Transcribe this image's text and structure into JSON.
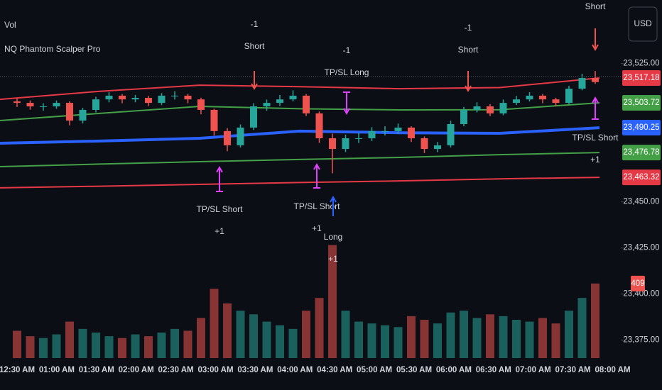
{
  "chart_data": {
    "type": "candlestick",
    "title": "NQ Phantom Scalper Pro",
    "volume_label": "Vol",
    "currency": "USD",
    "ylim": [
      23359.5,
      23559.5
    ],
    "yticks": [
      {
        "value": 23375,
        "label": "23,375.00"
      },
      {
        "value": 23400,
        "label": "23,400.00"
      },
      {
        "value": 23425,
        "label": "23,425.00"
      },
      {
        "value": 23450,
        "label": "23,450.00"
      },
      {
        "value": 23525,
        "label": "23,525.00"
      }
    ],
    "xticks": [
      "12:30 AM",
      "01:00 AM",
      "01:30 AM",
      "02:00 AM",
      "02:30 AM",
      "03:00 AM",
      "03:30 AM",
      "04:00 AM",
      "04:30 AM",
      "05:00 AM",
      "05:30 AM",
      "06:00 AM",
      "06:30 AM",
      "07:00 AM",
      "07:30 AM",
      "08:00 AM"
    ],
    "up_color": "#26a69a",
    "down_color": "#ef5350",
    "candles": [
      [
        23504.5,
        23506.0,
        23501.5,
        23503.7
      ],
      [
        23503.7,
        23505.0,
        23500.0,
        23501.8
      ],
      [
        23501.8,
        23503.5,
        23499.5,
        23501.8
      ],
      [
        23501.8,
        23505.0,
        23500.5,
        23503.7
      ],
      [
        23503.7,
        23504.5,
        23491.5,
        23494.1
      ],
      [
        23494.1,
        23501.0,
        23492.5,
        23499.9
      ],
      [
        23499.9,
        23507.0,
        23498.5,
        23505.6
      ],
      [
        23505.6,
        23509.5,
        23504.0,
        23507.6
      ],
      [
        23507.6,
        23508.5,
        23503.5,
        23505.6
      ],
      [
        23505.6,
        23508.0,
        23504.0,
        23506.4
      ],
      [
        23506.4,
        23507.5,
        23502.0,
        23503.7
      ],
      [
        23503.7,
        23509.0,
        23502.5,
        23507.6
      ],
      [
        23507.6,
        23510.0,
        23505.5,
        23507.6
      ],
      [
        23507.6,
        23508.5,
        23503.5,
        23505.6
      ],
      [
        23505.6,
        23506.5,
        23497.5,
        23499.9
      ],
      [
        23499.9,
        23500.5,
        23486.0,
        23488.4
      ],
      [
        23488.4,
        23490.0,
        23477.5,
        23480.7
      ],
      [
        23480.7,
        23492.0,
        23479.5,
        23490.3
      ],
      [
        23490.3,
        23503.5,
        23489.0,
        23501.8
      ],
      [
        23501.8,
        23505.5,
        23499.5,
        23503.7
      ],
      [
        23503.7,
        23508.0,
        23502.0,
        23505.6
      ],
      [
        23505.6,
        23510.5,
        23504.5,
        23507.6
      ],
      [
        23507.6,
        23508.5,
        23496.5,
        23498.0
      ],
      [
        23498.0,
        23499.0,
        23482.0,
        23484.5
      ],
      [
        23484.5,
        23487.0,
        23465.5,
        23478.7
      ],
      [
        23478.7,
        23486.5,
        23477.0,
        23484.5
      ],
      [
        23484.5,
        23487.5,
        23482.0,
        23484.5
      ],
      [
        23484.5,
        23490.5,
        23483.0,
        23488.4
      ],
      [
        23488.4,
        23491.0,
        23486.0,
        23488.4
      ],
      [
        23488.4,
        23492.5,
        23487.0,
        23490.3
      ],
      [
        23490.3,
        23491.0,
        23482.5,
        23484.5
      ],
      [
        23484.5,
        23485.5,
        23476.5,
        23478.7
      ],
      [
        23478.7,
        23482.5,
        23477.0,
        23480.7
      ],
      [
        23480.7,
        23494.0,
        23479.5,
        23492.2
      ],
      [
        23492.2,
        23501.5,
        23491.0,
        23499.9
      ],
      [
        23499.9,
        23504.0,
        23498.5,
        23501.8
      ],
      [
        23501.8,
        23503.0,
        23496.5,
        23498.0
      ],
      [
        23498.0,
        23505.5,
        23497.0,
        23503.7
      ],
      [
        23503.7,
        23507.5,
        23502.5,
        23505.6
      ],
      [
        23505.6,
        23509.5,
        23504.5,
        23507.6
      ],
      [
        23507.6,
        23508.5,
        23503.5,
        23505.6
      ],
      [
        23505.6,
        23506.5,
        23502.0,
        23503.7
      ],
      [
        23503.7,
        23513.0,
        23503.0,
        23511.4
      ],
      [
        23511.4,
        23519.5,
        23510.5,
        23517.2
      ],
      [
        23517.2,
        23521.0,
        23514.0,
        23515.0
      ]
    ],
    "volume": {
      "ylim": [
        0,
        700
      ],
      "values": [
        150,
        120,
        110,
        130,
        200,
        160,
        140,
        120,
        110,
        130,
        120,
        140,
        160,
        150,
        220,
        380,
        300,
        260,
        240,
        200,
        180,
        160,
        260,
        330,
        620,
        260,
        200,
        190,
        180,
        170,
        230,
        210,
        190,
        250,
        260,
        220,
        240,
        230,
        210,
        200,
        220,
        190,
        260,
        330,
        409
      ],
      "last_label": "409"
    },
    "series": [
      {
        "color": "#e53945",
        "values": [
          23505.6,
          23510.0,
          23513.3,
          23512.5,
          23511.4,
          23512.0,
          23517.18
        ],
        "last_label": "23,517.18"
      },
      {
        "color": "#43a047",
        "values": [
          23494.1,
          23498.0,
          23501.8,
          23500.5,
          23499.9,
          23500.0,
          23503.72
        ],
        "last_label": "23,503.72"
      },
      {
        "color": "#2962ff",
        "values": [
          23481.8,
          23483.0,
          23484.5,
          23488.4,
          23487.5,
          23487.2,
          23490.25
        ],
        "last_label": "23,490.25"
      },
      {
        "color": "#43a047",
        "values": [
          23469.1,
          23470.5,
          23471.8,
          23473.0,
          23474.1,
          23475.6,
          23476.78
        ],
        "last_label": "23,476.78"
      },
      {
        "color": "#e53945",
        "values": [
          23457.6,
          23458.5,
          23459.5,
          23460.5,
          23461.4,
          23462.5,
          23463.32
        ],
        "last_label": "23,463.32"
      }
    ],
    "annotations": [
      {
        "lines": [
          "-1",
          "Short"
        ]
      },
      {
        "lines": [
          "-1",
          "TP/SL Long"
        ]
      },
      {
        "lines": [
          "-1",
          "Short"
        ]
      },
      {
        "lines": [
          "Short"
        ]
      },
      {
        "lines": [
          "TP/SL Short",
          "+1"
        ]
      },
      {
        "lines": [
          "TP/SL Short",
          "+1"
        ]
      },
      {
        "lines": [
          "Long",
          "+1"
        ]
      },
      {
        "lines": [
          "TP/SL Short",
          "+1"
        ]
      }
    ]
  }
}
